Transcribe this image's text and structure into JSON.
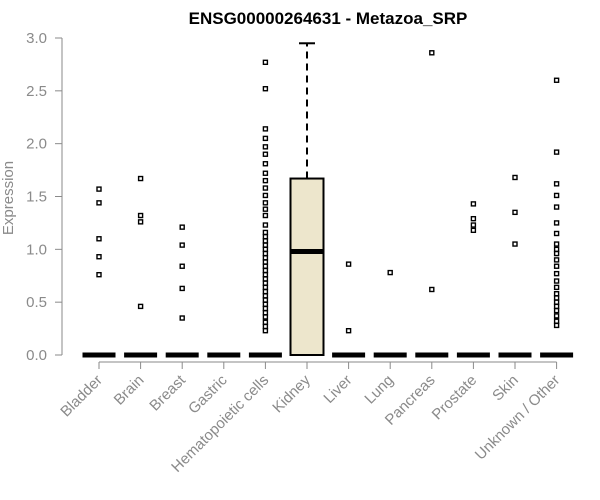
{
  "chart_data": {
    "type": "box",
    "title": "ENSG00000264631 - Metazoa_SRP",
    "ylabel": "Expression",
    "xlabel": "",
    "ylim": [
      0,
      3.0
    ],
    "yticks": [
      "0.0",
      "0.5",
      "1.0",
      "1.5",
      "2.0",
      "2.5",
      "3.0"
    ],
    "grid": false,
    "box_fill": "#ede6cc",
    "categories": [
      "Bladder",
      "Brain",
      "Breast",
      "Gastric",
      "Hematopoietic cells",
      "Kidney",
      "Liver",
      "Lung",
      "Pancreas",
      "Prostate",
      "Skin",
      "Unknown / Other"
    ],
    "boxes": [
      {
        "category": "Bladder",
        "q1": 0,
        "median": 0,
        "q3": 0,
        "whisker_low": 0,
        "whisker_high": 0,
        "outliers": [
          1.57,
          1.44,
          1.1,
          0.93,
          0.76
        ]
      },
      {
        "category": "Brain",
        "q1": 0,
        "median": 0,
        "q3": 0,
        "whisker_low": 0,
        "whisker_high": 0,
        "outliers": [
          1.67,
          1.32,
          1.26,
          0.46
        ]
      },
      {
        "category": "Breast",
        "q1": 0,
        "median": 0,
        "q3": 0,
        "whisker_low": 0,
        "whisker_high": 0,
        "outliers": [
          1.21,
          1.04,
          0.84,
          0.63,
          0.35
        ]
      },
      {
        "category": "Gastric",
        "q1": 0,
        "median": 0,
        "q3": 0,
        "whisker_low": 0,
        "whisker_high": 0,
        "outliers": []
      },
      {
        "category": "Hematopoietic cells",
        "q1": 0,
        "median": 0,
        "q3": 0,
        "whisker_low": 0,
        "whisker_high": 0,
        "outliers": [
          2.77,
          2.52,
          2.14,
          2.05,
          1.97,
          1.9,
          1.81,
          1.72,
          1.65,
          1.58,
          1.51,
          1.44,
          1.38,
          1.32,
          1.23,
          1.16,
          1.12,
          1.08,
          1.04,
          1.0,
          0.96,
          0.92,
          0.88,
          0.84,
          0.8,
          0.76,
          0.72,
          0.68,
          0.64,
          0.6,
          0.56,
          0.52,
          0.48,
          0.44,
          0.4,
          0.36,
          0.31,
          0.27,
          0.23
        ]
      },
      {
        "category": "Kidney",
        "q1": 0,
        "median": 0.98,
        "q3": 1.67,
        "whisker_low": 0,
        "whisker_high": 2.95,
        "outliers": []
      },
      {
        "category": "Liver",
        "q1": 0,
        "median": 0,
        "q3": 0,
        "whisker_low": 0,
        "whisker_high": 0,
        "outliers": [
          0.86,
          0.23
        ]
      },
      {
        "category": "Lung",
        "q1": 0,
        "median": 0,
        "q3": 0,
        "whisker_low": 0,
        "whisker_high": 0,
        "outliers": [
          0.78
        ]
      },
      {
        "category": "Pancreas",
        "q1": 0,
        "median": 0,
        "q3": 0,
        "whisker_low": 0,
        "whisker_high": 0,
        "outliers": [
          2.86,
          0.62
        ]
      },
      {
        "category": "Prostate",
        "q1": 0,
        "median": 0,
        "q3": 0,
        "whisker_low": 0,
        "whisker_high": 0,
        "outliers": [
          1.43,
          1.29,
          1.23,
          1.18
        ]
      },
      {
        "category": "Skin",
        "q1": 0,
        "median": 0,
        "q3": 0,
        "whisker_low": 0,
        "whisker_high": 0,
        "outliers": [
          1.68,
          1.35,
          1.05
        ]
      },
      {
        "category": "Unknown / Other",
        "q1": 0,
        "median": 0,
        "q3": 0,
        "whisker_low": 0,
        "whisker_high": 0,
        "outliers": [
          2.6,
          1.92,
          1.62,
          1.51,
          1.4,
          1.25,
          1.15,
          1.05,
          1.0,
          0.96,
          0.9,
          0.84,
          0.77,
          0.7,
          0.64,
          0.58,
          0.54,
          0.5,
          0.46,
          0.42,
          0.37,
          0.32,
          0.28
        ]
      }
    ]
  }
}
